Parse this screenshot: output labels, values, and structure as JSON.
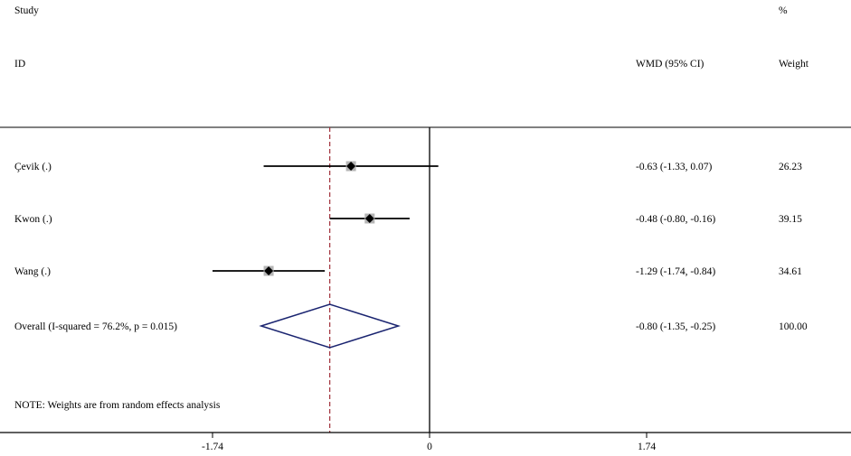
{
  "chart_data": {
    "type": "forest",
    "header": {
      "study_label": "Study",
      "id_label": "ID",
      "effect_label": "WMD (95% CI)",
      "percent_label": "%",
      "weight_label": "Weight"
    },
    "studies": [
      {
        "id": "Çevik  (.)",
        "estimate": -0.63,
        "ci_low": -1.33,
        "ci_high": 0.07,
        "ci_text": "-0.63 (-1.33, 0.07)",
        "weight": "26.23"
      },
      {
        "id": "Kwon  (.)",
        "estimate": -0.48,
        "ci_low": -0.8,
        "ci_high": -0.16,
        "ci_text": "-0.48 (-0.80, -0.16)",
        "weight": "39.15"
      },
      {
        "id": "Wang  (.)",
        "estimate": -1.29,
        "ci_low": -1.74,
        "ci_high": -0.84,
        "ci_text": "-1.29 (-1.74, -0.84)",
        "weight": "34.61"
      }
    ],
    "overall": {
      "id": "Overall  (I-squared = 76.2%, p = 0.015)",
      "estimate": -0.8,
      "ci_low": -1.35,
      "ci_high": -0.25,
      "ci_text": "-0.80 (-1.35, -0.25)",
      "weight": "100.00"
    },
    "note": "NOTE: Weights are from random effects analysis",
    "x_ticks": [
      {
        "value": -1.74,
        "label": "-1.74"
      },
      {
        "value": 0,
        "label": "0"
      },
      {
        "value": 1.74,
        "label": "1.74"
      }
    ],
    "xlim": [
      -3.48,
      3.48
    ],
    "null_line": 0,
    "colors": {
      "ci_line": "#000000",
      "point": "#000000",
      "weight_box": "#b5b5b5",
      "diamond": "#1a2470",
      "overall_line": "#a0303a",
      "axis": "#000000"
    }
  }
}
